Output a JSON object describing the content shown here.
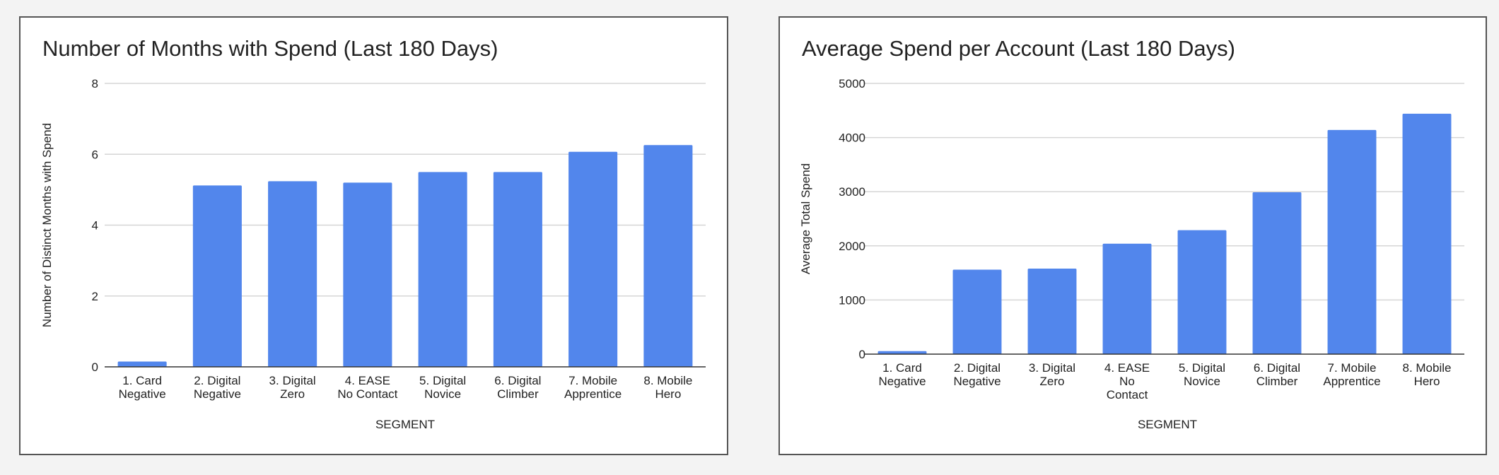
{
  "chart_data": [
    {
      "type": "bar",
      "title": "Number of Months with Spend (Last 180 Days)",
      "xlabel": "SEGMENT",
      "ylabel": "Number of Distinct Months with Spend",
      "ylim": [
        0,
        8
      ],
      "yticks": [
        "0",
        "2",
        "4",
        "6",
        "8"
      ],
      "grid": true,
      "color": "#5286ec",
      "categories": [
        [
          "1. Card",
          "Negative"
        ],
        [
          "2. Digital",
          "Negative"
        ],
        [
          "3. Digital",
          "Zero"
        ],
        [
          "4. EASE",
          "No Contact"
        ],
        [
          "5. Digital",
          "Novice"
        ],
        [
          "6. Digital",
          "Climber"
        ],
        [
          "7. Mobile",
          "Apprentice"
        ],
        [
          "8. Mobile",
          "Hero"
        ]
      ],
      "values": [
        0.15,
        5.12,
        5.24,
        5.2,
        5.5,
        5.5,
        6.07,
        6.26
      ]
    },
    {
      "type": "bar",
      "title": "Average Spend per Account (Last 180 Days)",
      "xlabel": "SEGMENT",
      "ylabel": "Average Total Spend",
      "ylim": [
        0,
        5000
      ],
      "yticks": [
        "0",
        "1000",
        "2000",
        "3000",
        "4000",
        "5000"
      ],
      "grid": true,
      "color": "#5286ec",
      "categories": [
        [
          "1. Card",
          "Negative"
        ],
        [
          "2. Digital",
          "Negative"
        ],
        [
          "3. Digital",
          "Zero"
        ],
        [
          "4. EASE",
          "No",
          "Contact"
        ],
        [
          "5. Digital",
          "Novice"
        ],
        [
          "6. Digital",
          "Climber"
        ],
        [
          "7. Mobile",
          "Apprentice"
        ],
        [
          "8. Mobile",
          "Hero"
        ]
      ],
      "values": [
        55,
        1560,
        1580,
        2040,
        2290,
        2990,
        4140,
        4440
      ]
    }
  ]
}
